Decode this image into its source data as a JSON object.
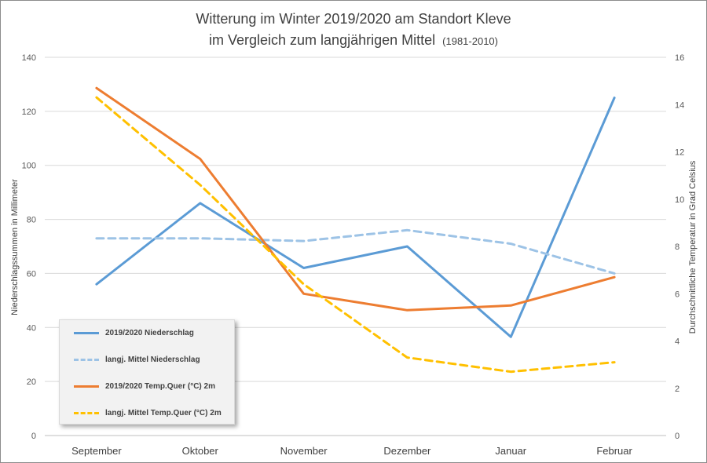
{
  "chart_data": {
    "type": "line",
    "title_line1": "Witterung im Winter 2019/2020 am Standort Kleve",
    "title_line2": "im Vergleich zum langjährigen Mittel",
    "title_suffix": "(1981-2010)",
    "categories": [
      "September",
      "Oktober",
      "November",
      "Dezember",
      "Januar",
      "Februar"
    ],
    "ylabel": "Niederschlagssummen in Millimeter",
    "y2label": "Durchschnittliche Temperatur in Grad Celsius",
    "ylim": [
      0,
      140
    ],
    "y_ticks": [
      0,
      20,
      40,
      60,
      80,
      100,
      120,
      140
    ],
    "y2lim": [
      0,
      16
    ],
    "y2_ticks": [
      0,
      2,
      4,
      6,
      8,
      10,
      12,
      14,
      16
    ],
    "grid": true,
    "legend_placement": "bottom-left",
    "series": [
      {
        "name": "2019/2020 Niederschlag",
        "axis": "left",
        "color": "#5b9bd5",
        "dash": "solid",
        "values": [
          56,
          86,
          62,
          70,
          36.5,
          125
        ]
      },
      {
        "name": "langj. Mittel Niederschlag",
        "axis": "left",
        "color": "#9dc3e6",
        "dash": "dashed",
        "values": [
          73,
          73,
          72,
          76,
          71,
          60
        ]
      },
      {
        "name": "2019/2020 Temp.Quer (°C) 2m",
        "axis": "right",
        "color": "#ed7d31",
        "dash": "solid",
        "values": [
          14.7,
          11.7,
          6,
          5.3,
          5.5,
          6.7
        ]
      },
      {
        "name": "langj. Mittel Temp.Quer (°C) 2m",
        "axis": "right",
        "color": "#ffc000",
        "dash": "dashed",
        "values": [
          14.3,
          10.6,
          6.4,
          3.3,
          2.7,
          3.1
        ]
      }
    ]
  }
}
